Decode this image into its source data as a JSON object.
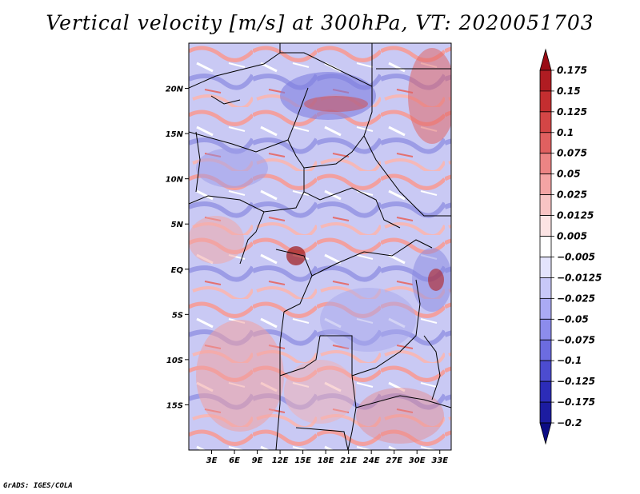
{
  "title": "Vertical velocity [m/s] at 300hPa, VT: 2020051703",
  "footer": "GrADS: IGES/COLA",
  "map": {
    "lat_labels": [
      "20N",
      "15N",
      "10N",
      "5N",
      "EQ",
      "5S",
      "10S",
      "15S"
    ],
    "lat_values": [
      20,
      15,
      10,
      5,
      0,
      -5,
      -10,
      -15
    ],
    "lon_labels": [
      "3E",
      "6E",
      "9E",
      "12E",
      "15E",
      "18E",
      "21E",
      "24E",
      "27E",
      "30E",
      "33E"
    ],
    "lon_values": [
      3,
      6,
      9,
      12,
      15,
      18,
      21,
      24,
      27,
      30,
      33
    ],
    "lon_range": [
      0,
      34.5
    ],
    "lat_range": [
      -20,
      25
    ],
    "field": "vertical velocity",
    "units": "m/s",
    "level": "300hPa"
  },
  "colorbar": {
    "labels": [
      "0.175",
      "0.15",
      "0.125",
      "0.1",
      "0.075",
      "0.05",
      "0.025",
      "0.0125",
      "0.005",
      "−0.005",
      "−0.0125",
      "−0.025",
      "−0.05",
      "−0.075",
      "−0.1",
      "−0.125",
      "−0.175",
      "−0.2"
    ],
    "colors": [
      "#9a0c14",
      "#b01c22",
      "#c42e30",
      "#d44646",
      "#e06060",
      "#ec8484",
      "#f4a4a4",
      "#f8c4c4",
      "#fce4e4",
      "#ffffff",
      "#e4e4fc",
      "#c8c8f8",
      "#aaaaf4",
      "#8c8cec",
      "#6c6ce0",
      "#4c4cd0",
      "#2c2cb8",
      "#1c1ca0",
      "#0c0c84"
    ]
  }
}
